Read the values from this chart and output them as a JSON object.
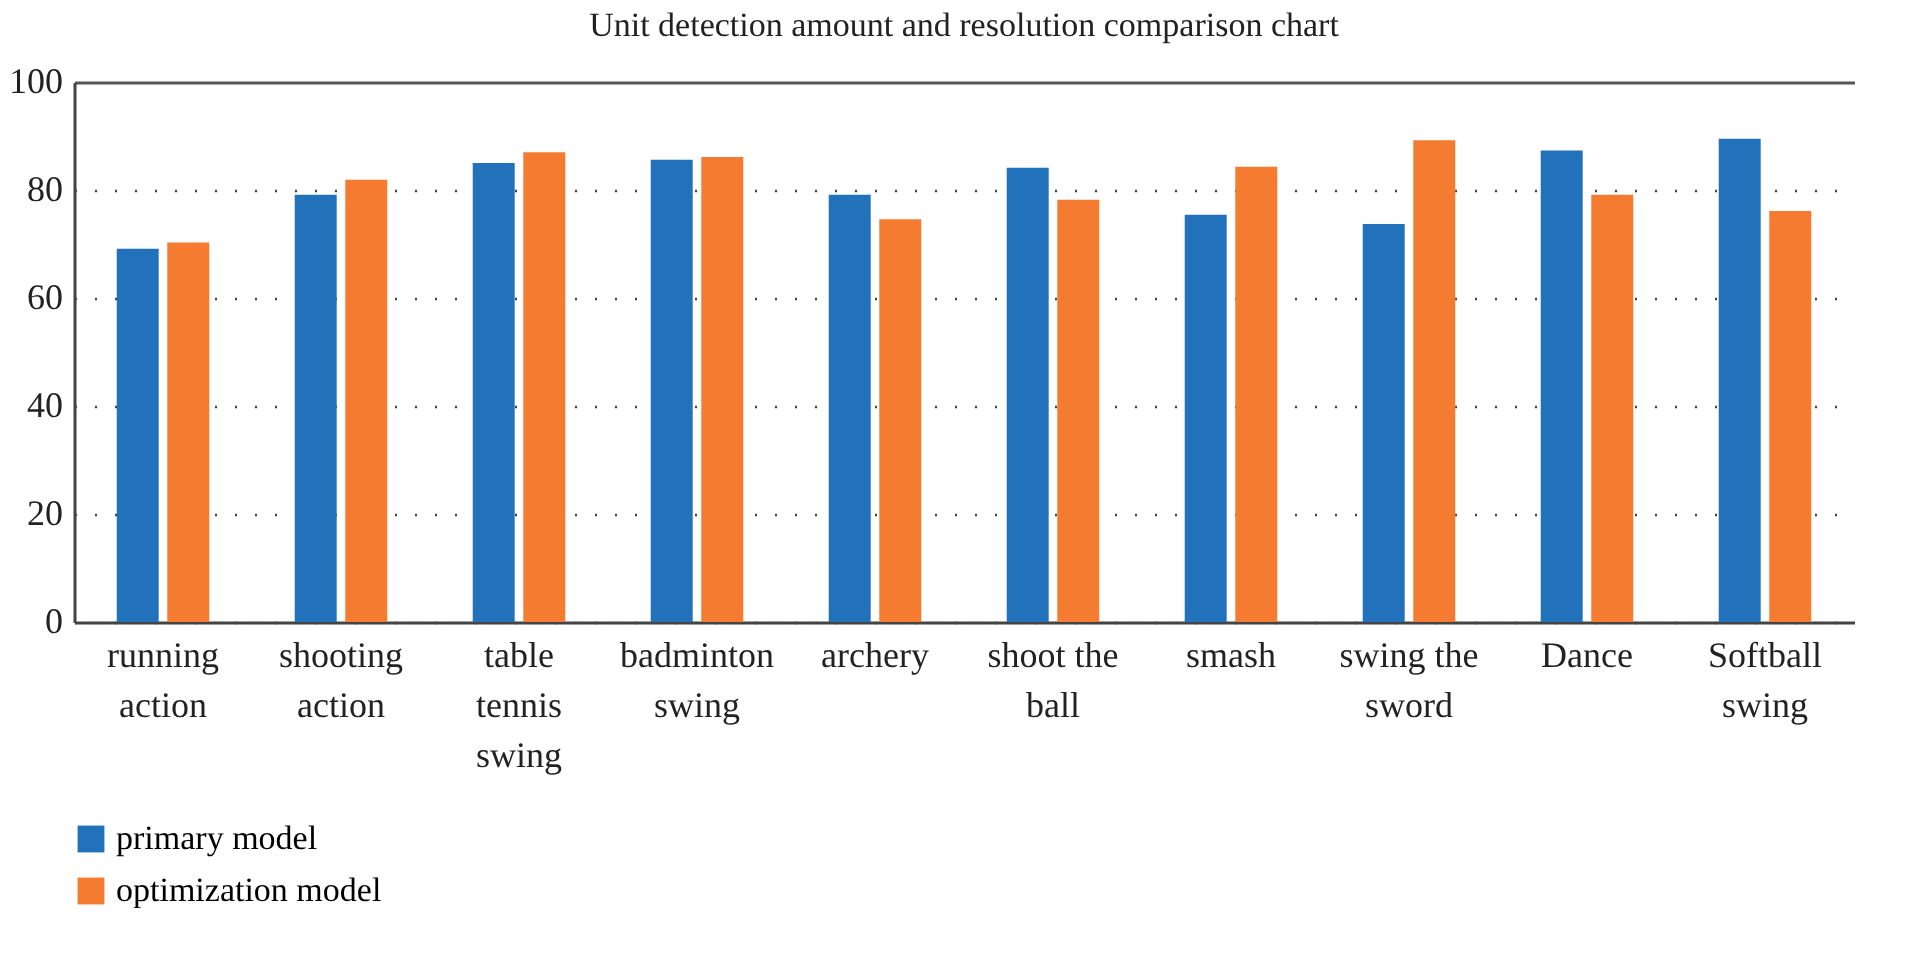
{
  "chart_data": {
    "type": "bar",
    "title": "Unit detection amount and resolution comparison chart",
    "categories": [
      "running action",
      "shooting action",
      "table tennis swing",
      "badminton swing",
      "archery",
      "shoot the ball",
      "smash",
      "swing the sword",
      "Dance",
      "Softball swing"
    ],
    "series": [
      {
        "name": "primary model",
        "color": "#2172ba",
        "values": [
          69.1,
          79.1,
          85.0,
          85.6,
          79.1,
          84.1,
          75.4,
          73.7,
          87.3,
          89.5
        ]
      },
      {
        "name": "optimization model",
        "color": "#f47b30",
        "values": [
          70.3,
          81.9,
          87.0,
          86.1,
          74.6,
          78.2,
          84.3,
          89.2,
          79.1,
          76.1
        ]
      }
    ],
    "ylim": [
      0,
      100
    ],
    "yticks": [
      0,
      20,
      40,
      60,
      80,
      100
    ],
    "grid": "y",
    "legend": "bottom left"
  }
}
